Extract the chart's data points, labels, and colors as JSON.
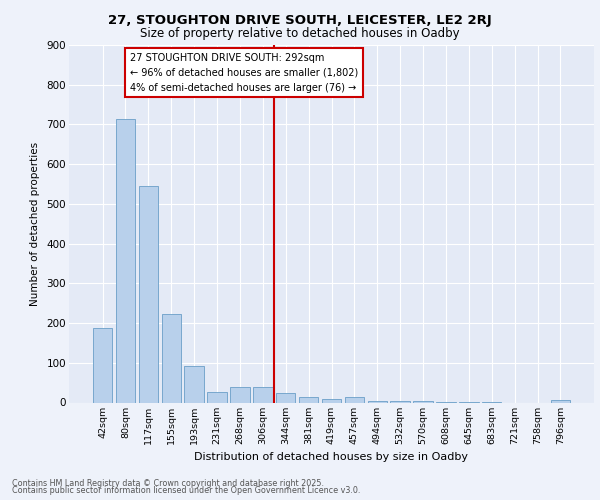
{
  "title1": "27, STOUGHTON DRIVE SOUTH, LEICESTER, LE2 2RJ",
  "title2": "Size of property relative to detached houses in Oadby",
  "xlabel": "Distribution of detached houses by size in Oadby",
  "ylabel": "Number of detached properties",
  "bar_labels": [
    "42sqm",
    "80sqm",
    "117sqm",
    "155sqm",
    "193sqm",
    "231sqm",
    "268sqm",
    "306sqm",
    "344sqm",
    "381sqm",
    "419sqm",
    "457sqm",
    "494sqm",
    "532sqm",
    "570sqm",
    "608sqm",
    "645sqm",
    "683sqm",
    "721sqm",
    "758sqm",
    "796sqm"
  ],
  "bar_values": [
    188,
    714,
    545,
    224,
    91,
    27,
    38,
    40,
    24,
    14,
    10,
    13,
    5,
    4,
    3,
    2,
    1,
    1,
    0,
    0,
    7
  ],
  "bar_color": "#b8d0eb",
  "bar_edge_color": "#6a9fc8",
  "vline_x": 7.5,
  "vline_color": "#cc0000",
  "annotation_text": "27 STOUGHTON DRIVE SOUTH: 292sqm\n← 96% of detached houses are smaller (1,802)\n4% of semi-detached houses are larger (76) →",
  "annotation_box_color": "#cc0000",
  "ylim": [
    0,
    900
  ],
  "yticks": [
    0,
    100,
    200,
    300,
    400,
    500,
    600,
    700,
    800,
    900
  ],
  "footer1": "Contains HM Land Registry data © Crown copyright and database right 2025.",
  "footer2": "Contains public sector information licensed under the Open Government Licence v3.0.",
  "bg_color": "#eef2fa",
  "plot_bg_color": "#e4eaf6"
}
